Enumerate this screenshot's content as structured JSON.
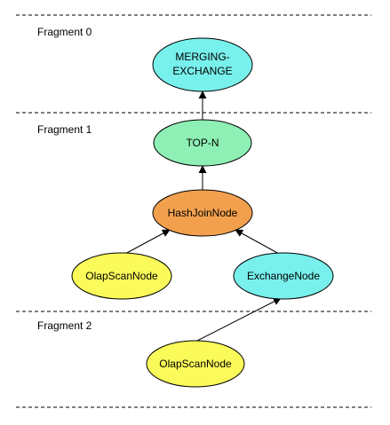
{
  "fragments": [
    {
      "label": "Fragment  0"
    },
    {
      "label": "Fragment  1"
    },
    {
      "label": "Fragment  2"
    }
  ],
  "nodes": {
    "merging_exchange": {
      "lines": [
        "MERGING-",
        "EXCHANGE"
      ],
      "color": "#78f0ec"
    },
    "top_n": {
      "lines": [
        "TOP-N"
      ],
      "color": "#8ef0b4"
    },
    "hash_join": {
      "lines": [
        "HashJoinNode"
      ],
      "color": "#f2a04e"
    },
    "olap_scan_left": {
      "lines": [
        "OlapScanNode"
      ],
      "color": "#fafa5a"
    },
    "exchange": {
      "lines": [
        "ExchangeNode"
      ],
      "color": "#78f0ec"
    },
    "olap_scan_bottom": {
      "lines": [
        "OlapScanNode"
      ],
      "color": "#fafa5a"
    }
  },
  "edges": [
    {
      "from": "top_n",
      "to": "merging_exchange"
    },
    {
      "from": "hash_join",
      "to": "top_n"
    },
    {
      "from": "olap_scan_left",
      "to": "hash_join"
    },
    {
      "from": "exchange",
      "to": "hash_join"
    },
    {
      "from": "olap_scan_bottom",
      "to": "exchange"
    }
  ]
}
